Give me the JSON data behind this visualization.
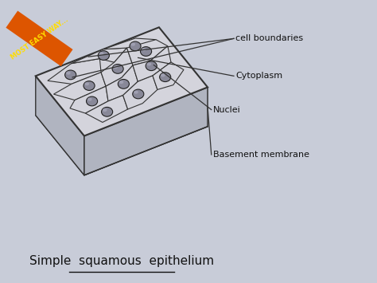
{
  "bg_color": "#c8ccd8",
  "cell_face_color": "#d4d4dc",
  "cell_edge_color": "#333333",
  "nucleus_face_color": "#888898",
  "nucleus_edge_color": "#222222",
  "nucleus_highlight_color": "#aaaabc",
  "side_face_color": "#b0b4c0",
  "base_face_color": "#b8bcc8",
  "title": "Simple  squamous  epithelium",
  "title_fontsize": 11,
  "label_fontsize": 8,
  "banner_text": "MOST EASY WAY...",
  "banner_color": "#dd5500",
  "banner_text_color": "#ffdd00",
  "labels": {
    "cell_boundaries": "cell boundaries",
    "cytoplasm": "Cytoplasm",
    "nuclei": "Nuclei",
    "basement": "Basement membrane"
  }
}
